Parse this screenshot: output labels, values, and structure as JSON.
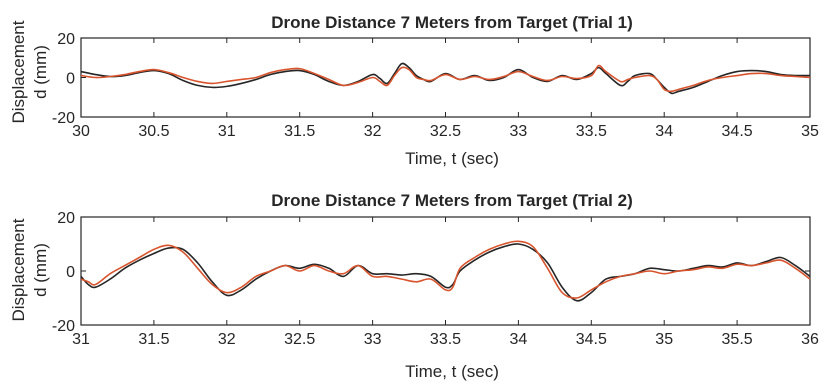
{
  "chart_data": [
    {
      "type": "line",
      "title": "Drone Distance 7 Meters from Target (Trial 1)",
      "xlabel": "Time, t (sec)",
      "ylabel": [
        "Displacement",
        "d (mm)"
      ],
      "xlim": [
        30,
        35
      ],
      "ylim": [
        -20,
        20
      ],
      "xticks": [
        "30",
        "30.5",
        "31",
        "31.5",
        "32",
        "32.5",
        "33",
        "33.5",
        "34",
        "34.5",
        "35"
      ],
      "xtick_values": [
        30,
        30.5,
        31,
        31.5,
        32,
        32.5,
        33,
        33.5,
        34,
        34.5,
        35
      ],
      "yticks": [
        "-20",
        "0",
        "20"
      ],
      "ytick_values": [
        -20,
        0,
        20
      ],
      "grid": false,
      "legend": "none",
      "series": [
        {
          "color": "#262626",
          "x": [
            30,
            30.1,
            30.2,
            30.3,
            30.4,
            30.5,
            30.6,
            30.7,
            30.8,
            30.9,
            31,
            31.1,
            31.2,
            31.3,
            31.4,
            31.5,
            31.6,
            31.7,
            31.8,
            31.9,
            32,
            32.05,
            32.1,
            32.15,
            32.2,
            32.25,
            32.3,
            32.35,
            32.4,
            32.5,
            32.6,
            32.7,
            32.8,
            32.9,
            33,
            33.1,
            33.2,
            33.3,
            33.4,
            33.5,
            33.55,
            33.6,
            33.7,
            33.75,
            33.8,
            33.9,
            33.95,
            34,
            34.05,
            34.1,
            34.2,
            34.3,
            34.4,
            34.5,
            34.6,
            34.7,
            34.8,
            34.9,
            35
          ],
          "y": [
            3,
            1.5,
            0.5,
            1,
            2.5,
            3.5,
            2,
            -1.5,
            -4,
            -5,
            -4.5,
            -3,
            -1,
            1.5,
            3,
            3.5,
            1.5,
            -2,
            -4,
            -2,
            1.5,
            -0.5,
            -3,
            2,
            7,
            5,
            1,
            -1,
            -2,
            2,
            -1,
            1,
            -1.5,
            0,
            4,
            0,
            -2,
            1,
            -1,
            2,
            5,
            2,
            -4,
            -2,
            1,
            2,
            -1,
            -5,
            -8,
            -7,
            -5,
            -2,
            1,
            3,
            3.5,
            3,
            1.5,
            1,
            1
          ]
        },
        {
          "color": "#d9542c",
          "x": [
            30,
            30.1,
            30.2,
            30.3,
            30.4,
            30.5,
            30.6,
            30.7,
            30.8,
            30.9,
            31,
            31.1,
            31.2,
            31.3,
            31.4,
            31.5,
            31.6,
            31.7,
            31.8,
            31.9,
            32,
            32.05,
            32.1,
            32.15,
            32.2,
            32.25,
            32.3,
            32.35,
            32.4,
            32.5,
            32.6,
            32.7,
            32.8,
            32.9,
            33,
            33.1,
            33.2,
            33.3,
            33.4,
            33.5,
            33.55,
            33.6,
            33.7,
            33.75,
            33.8,
            33.9,
            33.95,
            34,
            34.05,
            34.1,
            34.2,
            34.3,
            34.4,
            34.5,
            34.6,
            34.7,
            34.8,
            34.9,
            35
          ],
          "y": [
            1,
            0,
            0.5,
            1.5,
            3,
            4,
            2.5,
            0,
            -2,
            -3,
            -2,
            -1,
            0,
            2.5,
            4,
            4.5,
            2,
            -1,
            -4,
            -2.5,
            0,
            -2,
            -4,
            1,
            5,
            4,
            0,
            -1,
            -1.5,
            1.5,
            -1,
            0.5,
            -1,
            0.5,
            3,
            0.5,
            -1.5,
            0.5,
            -0.5,
            1,
            6,
            3,
            -2,
            -1,
            0,
            1,
            -1,
            -6,
            -7,
            -6,
            -4,
            -1.5,
            0,
            1,
            2,
            2,
            1,
            0.5,
            0
          ]
        }
      ]
    },
    {
      "type": "line",
      "title": "Drone Distance 7 Meters from Target (Trial 2)",
      "xlabel": "Time, t (sec)",
      "ylabel": [
        "Displacement",
        "d (mm)"
      ],
      "xlim": [
        31,
        36
      ],
      "ylim": [
        -20,
        20
      ],
      "xticks": [
        "31",
        "31.5",
        "32",
        "32.5",
        "33",
        "33.5",
        "34",
        "34.5",
        "35",
        "35.5",
        "36"
      ],
      "xtick_values": [
        31,
        31.5,
        32,
        32.5,
        33,
        33.5,
        34,
        34.5,
        35,
        35.5,
        36
      ],
      "yticks": [
        "-20",
        "0",
        "20"
      ],
      "ytick_values": [
        -20,
        0,
        20
      ],
      "grid": false,
      "legend": "none",
      "series": [
        {
          "color": "#262626",
          "x": [
            31,
            31.05,
            31.1,
            31.2,
            31.3,
            31.4,
            31.5,
            31.6,
            31.7,
            31.8,
            31.9,
            32,
            32.1,
            32.2,
            32.3,
            32.4,
            32.5,
            32.6,
            32.7,
            32.8,
            32.9,
            33,
            33.1,
            33.2,
            33.3,
            33.4,
            33.5,
            33.55,
            33.6,
            33.7,
            33.8,
            33.9,
            34,
            34.1,
            34.2,
            34.3,
            34.4,
            34.5,
            34.6,
            34.7,
            34.8,
            34.9,
            35,
            35.1,
            35.2,
            35.3,
            35.4,
            35.5,
            35.6,
            35.7,
            35.8,
            35.9,
            36
          ],
          "y": [
            -2,
            -5,
            -6,
            -3,
            1,
            4,
            6.5,
            8.5,
            8,
            3,
            -4,
            -9,
            -7,
            -3,
            0,
            2,
            1,
            2.5,
            1,
            -2,
            2,
            -1,
            -1,
            -1.5,
            -1,
            -2,
            -6,
            -5,
            0,
            4,
            7,
            9,
            10,
            8,
            3,
            -6,
            -11,
            -8,
            -3,
            -2,
            -1,
            1,
            0.5,
            0,
            1,
            2,
            1.5,
            3,
            2,
            3.5,
            5,
            2,
            -2
          ]
        },
        {
          "color": "#d9542c",
          "x": [
            31,
            31.05,
            31.1,
            31.2,
            31.3,
            31.4,
            31.5,
            31.6,
            31.7,
            31.8,
            31.9,
            32,
            32.1,
            32.2,
            32.3,
            32.4,
            32.5,
            32.6,
            32.7,
            32.8,
            32.9,
            33,
            33.1,
            33.2,
            33.3,
            33.4,
            33.5,
            33.55,
            33.6,
            33.7,
            33.8,
            33.9,
            34,
            34.1,
            34.2,
            34.3,
            34.4,
            34.5,
            34.6,
            34.7,
            34.8,
            34.9,
            35,
            35.1,
            35.2,
            35.3,
            35.4,
            35.5,
            35.6,
            35.7,
            35.8,
            35.9,
            36
          ],
          "y": [
            -3,
            -4,
            -5,
            -1,
            2,
            5,
            8,
            9.5,
            7,
            1,
            -5,
            -8,
            -6,
            -2,
            0,
            2,
            0,
            2,
            0,
            -1,
            2,
            -2,
            -2,
            -3,
            -4,
            -3,
            -7,
            -6,
            1,
            5,
            8,
            10,
            11,
            9,
            1,
            -8,
            -10,
            -7,
            -4,
            -2,
            -1,
            0,
            -1,
            0,
            0.5,
            1.5,
            1,
            2.5,
            2,
            3,
            4,
            1,
            -3
          ]
        }
      ]
    }
  ]
}
